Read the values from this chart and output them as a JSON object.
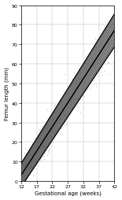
{
  "title": "",
  "xlabel": "Gestational age (weeks)",
  "ylabel": "Femur length (mm)",
  "xlim": [
    12,
    42
  ],
  "ylim": [
    0,
    90
  ],
  "xticks": [
    12,
    17,
    22,
    27,
    32,
    37,
    42
  ],
  "yticks": [
    0,
    10,
    20,
    30,
    40,
    50,
    60,
    70,
    80,
    90
  ],
  "bg_color": "#ffffff",
  "grid_color": "#bbbbbb",
  "mean_color": "#000000",
  "scatter_color": "#999999",
  "line_width": 0.7,
  "ga_start": 12,
  "ga_end": 42,
  "n_scatter": 600,
  "n_reference_lines": 12,
  "outer_sd_mult": 2.0,
  "inner_sd_mult": 1.0
}
